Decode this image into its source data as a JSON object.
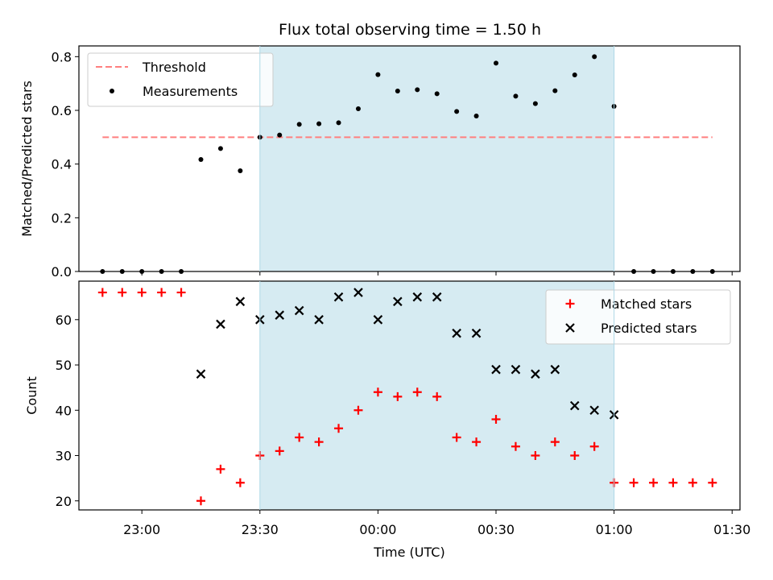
{
  "chart_data": [
    {
      "type": "scatter",
      "title": "Flux total observing time = 1.50 h",
      "xlabel": "",
      "ylabel": "Matched/Predicted stars",
      "xlim": [
        "22:44",
        "01:32"
      ],
      "ylim": [
        0,
        0.84
      ],
      "y_ticks": [
        {
          "value": 0.0,
          "label": "0.0"
        },
        {
          "value": 0.2,
          "label": "0.2"
        },
        {
          "value": 0.4,
          "label": "0.4"
        },
        {
          "value": 0.6,
          "label": "0.6"
        },
        {
          "value": 0.8,
          "label": "0.8"
        }
      ],
      "shaded_span": {
        "from": "23:30",
        "to": "01:00",
        "color": "#add8e6"
      },
      "legend_position": "upper-left",
      "series": [
        {
          "name": "Threshold",
          "kind": "dashed-line",
          "color": "#ff7f7f",
          "x": [
            "22:50",
            "01:25"
          ],
          "y": [
            0.5,
            0.5
          ]
        },
        {
          "name": "Measurements",
          "kind": "dot",
          "color": "#000000",
          "x": [
            "22:50",
            "22:55",
            "23:00",
            "23:05",
            "23:10",
            "23:15",
            "23:20",
            "23:25",
            "23:30",
            "23:35",
            "23:40",
            "23:45",
            "23:50",
            "23:55",
            "00:00",
            "00:05",
            "00:10",
            "00:15",
            "00:20",
            "00:25",
            "00:30",
            "00:35",
            "00:40",
            "00:45",
            "00:50",
            "00:55",
            "01:00",
            "01:05",
            "01:10",
            "01:15",
            "01:20",
            "01:25"
          ],
          "y": [
            0,
            0,
            0,
            0,
            0,
            0.417,
            0.458,
            0.375,
            0.5,
            0.508,
            0.548,
            0.55,
            0.554,
            0.606,
            0.733,
            0.672,
            0.677,
            0.662,
            0.596,
            0.579,
            0.776,
            0.653,
            0.625,
            0.673,
            0.732,
            0.8,
            0.615,
            0,
            0,
            0,
            0,
            0
          ]
        }
      ]
    },
    {
      "type": "scatter",
      "title": "",
      "xlabel": "Time (UTC)",
      "ylabel": "Count",
      "xlim": [
        "22:44",
        "01:32"
      ],
      "ylim": [
        18,
        68.5
      ],
      "x_ticks": [
        {
          "value": "23:00",
          "label": "23:00"
        },
        {
          "value": "23:30",
          "label": "23:30"
        },
        {
          "value": "00:00",
          "label": "00:00"
        },
        {
          "value": "00:30",
          "label": "00:30"
        },
        {
          "value": "01:00",
          "label": "01:00"
        },
        {
          "value": "01:30",
          "label": "01:30"
        }
      ],
      "y_ticks": [
        {
          "value": 20,
          "label": "20"
        },
        {
          "value": 30,
          "label": "30"
        },
        {
          "value": 40,
          "label": "40"
        },
        {
          "value": 50,
          "label": "50"
        },
        {
          "value": 60,
          "label": "60"
        }
      ],
      "shaded_span": {
        "from": "23:30",
        "to": "01:00",
        "color": "#add8e6"
      },
      "legend_position": "upper-right",
      "series": [
        {
          "name": "Matched stars",
          "kind": "plus",
          "color": "#ff0000",
          "x": [
            "22:50",
            "22:55",
            "23:00",
            "23:05",
            "23:10",
            "23:15",
            "23:20",
            "23:25",
            "23:30",
            "23:35",
            "23:40",
            "23:45",
            "23:50",
            "23:55",
            "00:00",
            "00:05",
            "00:10",
            "00:15",
            "00:20",
            "00:25",
            "00:30",
            "00:35",
            "00:40",
            "00:45",
            "00:50",
            "00:55",
            "01:00",
            "01:05",
            "01:10",
            "01:15",
            "01:20",
            "01:25"
          ],
          "y": [
            66,
            66,
            66,
            66,
            66,
            20,
            27,
            24,
            30,
            31,
            34,
            33,
            36,
            40,
            44,
            43,
            44,
            43,
            34,
            33,
            38,
            32,
            30,
            33,
            30,
            32,
            24,
            24,
            24,
            24,
            24,
            24
          ]
        },
        {
          "name": "Predicted stars",
          "kind": "cross",
          "color": "#000000",
          "x": [
            "23:15",
            "23:20",
            "23:25",
            "23:30",
            "23:35",
            "23:40",
            "23:45",
            "23:50",
            "23:55",
            "00:00",
            "00:05",
            "00:10",
            "00:15",
            "00:20",
            "00:25",
            "00:30",
            "00:35",
            "00:40",
            "00:45",
            "00:50",
            "00:55",
            "01:00"
          ],
          "y": [
            48,
            59,
            64,
            60,
            61,
            62,
            60,
            65,
            66,
            60,
            64,
            65,
            65,
            57,
            57,
            49,
            49,
            48,
            49,
            41,
            40,
            39
          ]
        }
      ]
    }
  ]
}
